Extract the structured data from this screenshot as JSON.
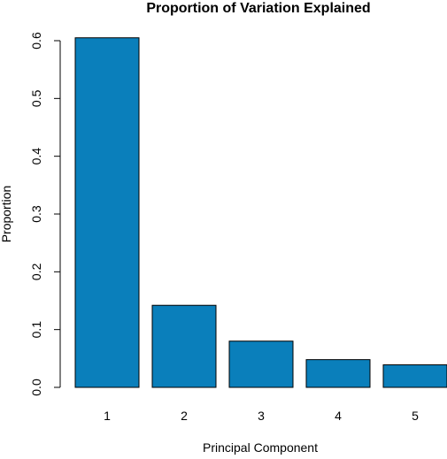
{
  "chart_data": {
    "type": "bar",
    "title": "Proportion of Variation Explained",
    "xlabel": "Principal Component",
    "ylabel": "Proportion",
    "categories": [
      "1",
      "2",
      "3",
      "4",
      "5"
    ],
    "values": [
      0.605,
      0.142,
      0.08,
      0.048,
      0.039
    ],
    "ylim": [
      0,
      0.6
    ],
    "yticks": [
      "0.0",
      "0.1",
      "0.2",
      "0.3",
      "0.4",
      "0.5",
      "0.6"
    ],
    "grid": false,
    "bar_color": "#0A7FBB"
  }
}
